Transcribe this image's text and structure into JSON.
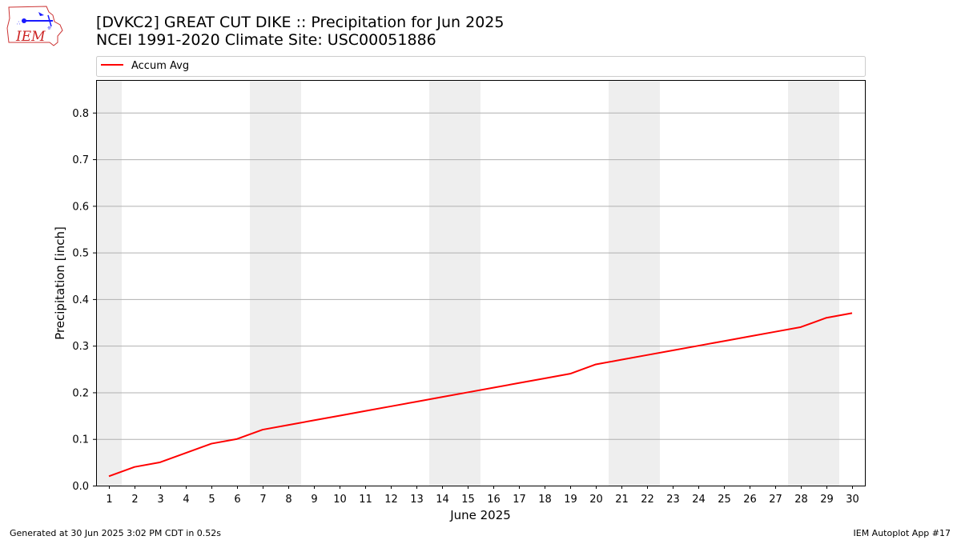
{
  "header": {
    "title_line1": "[DVKC2] GREAT CUT DIKE :: Precipitation for Jun 2025",
    "title_line2": "NCEI 1991-2020 Climate Site: USC00051886"
  },
  "logo": {
    "text": "IEM",
    "icon": "iem-iowa-weather-logo"
  },
  "footer": {
    "generated": "Generated at 30 Jun 2025 3:02 PM CDT in 0.52s",
    "app": "IEM Autoplot App #17"
  },
  "colors": {
    "line": "#ff0000",
    "weekend_band": "#eeeeee",
    "grid": "#b0b0b0"
  },
  "chart_data": {
    "type": "line",
    "title": "[DVKC2] GREAT CUT DIKE :: Precipitation for Jun 2025",
    "subtitle": "NCEI 1991-2020 Climate Site: USC00051886",
    "xlabel": "June 2025",
    "ylabel": "Precipitation [inch]",
    "x": [
      1,
      2,
      3,
      4,
      5,
      6,
      7,
      8,
      9,
      10,
      11,
      12,
      13,
      14,
      15,
      16,
      17,
      18,
      19,
      20,
      21,
      22,
      23,
      24,
      25,
      26,
      27,
      28,
      29,
      30
    ],
    "xlim": [
      0.5,
      30.5
    ],
    "ylim": [
      0,
      0.87
    ],
    "yticks": [
      0.0,
      0.1,
      0.2,
      0.3,
      0.4,
      0.5,
      0.6,
      0.7,
      0.8
    ],
    "ytick_labels": [
      "0.0",
      "0.1",
      "0.2",
      "0.3",
      "0.4",
      "0.5",
      "0.6",
      "0.7",
      "0.8"
    ],
    "grid": "horizontal",
    "legend_position": "top-left, above plot",
    "weekend_bands": [
      [
        0.5,
        1.5
      ],
      [
        6.5,
        8.5
      ],
      [
        13.5,
        15.5
      ],
      [
        20.5,
        22.5
      ],
      [
        27.5,
        29.5
      ]
    ],
    "series": [
      {
        "name": "Accum Avg",
        "color": "#ff0000",
        "values": [
          0.02,
          0.04,
          0.05,
          0.07,
          0.09,
          0.1,
          0.12,
          0.13,
          0.14,
          0.15,
          0.16,
          0.17,
          0.18,
          0.19,
          0.2,
          0.21,
          0.22,
          0.23,
          0.24,
          0.26,
          0.27,
          0.28,
          0.29,
          0.3,
          0.31,
          0.32,
          0.33,
          0.34,
          0.36,
          0.37
        ]
      }
    ]
  }
}
